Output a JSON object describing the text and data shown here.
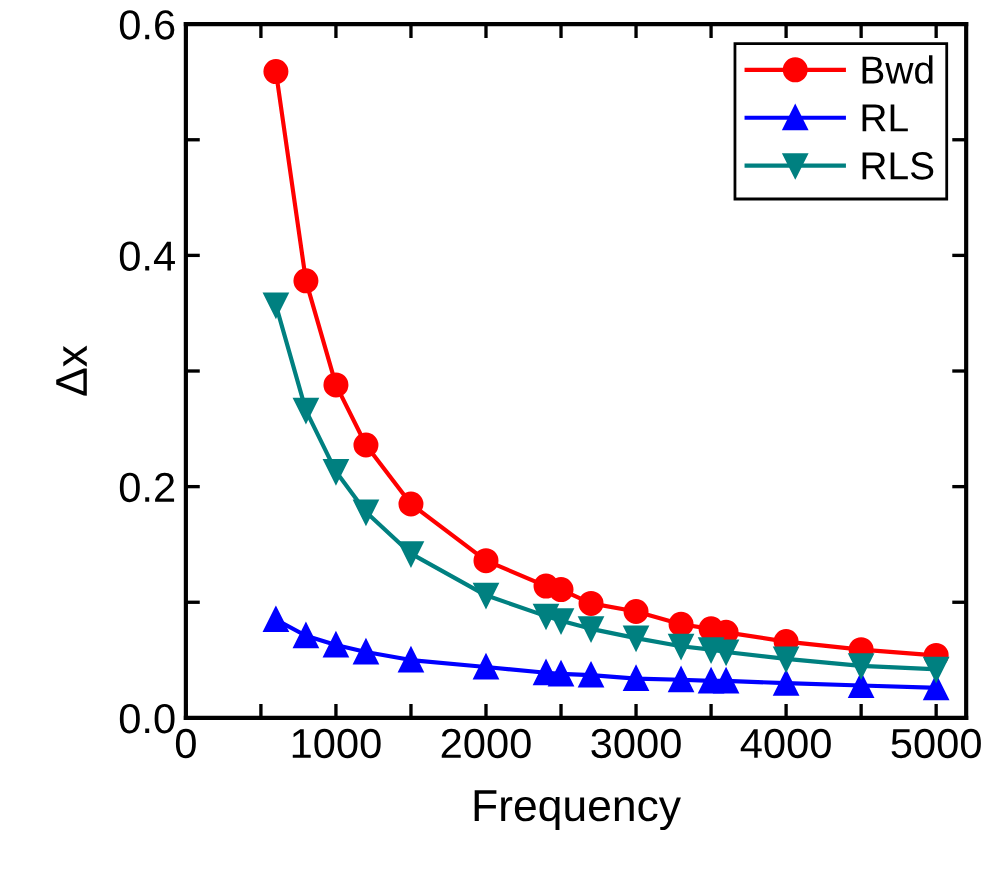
{
  "chart_data": {
    "type": "line",
    "xlabel": "Frequency",
    "ylabel": "Δx",
    "x": [
      600,
      800,
      1000,
      1200,
      1500,
      2000,
      2400,
      2500,
      2700,
      3000,
      3300,
      3500,
      3600,
      4000,
      4500,
      5000
    ],
    "series": [
      {
        "name": "Bwd",
        "color": "#ff0000",
        "marker": "circle",
        "values": [
          0.559,
          0.378,
          0.288,
          0.236,
          0.185,
          0.136,
          0.114,
          0.111,
          0.099,
          0.092,
          0.081,
          0.077,
          0.074,
          0.066,
          0.059,
          0.054
        ]
      },
      {
        "name": "RL",
        "color": "#0000ff",
        "marker": "triangle",
        "values": [
          0.085,
          0.071,
          0.063,
          0.057,
          0.05,
          0.044,
          0.039,
          0.038,
          0.037,
          0.034,
          0.033,
          0.032,
          0.032,
          0.03,
          0.028,
          0.026
        ]
      },
      {
        "name": "RLS",
        "color": "#008080",
        "marker": "triangle_down",
        "values": [
          0.357,
          0.266,
          0.213,
          0.178,
          0.142,
          0.106,
          0.088,
          0.084,
          0.077,
          0.069,
          0.062,
          0.059,
          0.057,
          0.051,
          0.045,
          0.042
        ]
      }
    ],
    "xlim": [
      0,
      5200
    ],
    "ylim": [
      0,
      0.6
    ],
    "xticks": [
      0,
      {
        "value": 500,
        "label": null
      },
      1000,
      {
        "value": 1500,
        "label": null
      },
      2000,
      {
        "value": 2500,
        "label": null
      },
      3000,
      {
        "value": 3500,
        "label": null
      },
      4000,
      {
        "value": 4500,
        "label": null
      },
      5000
    ],
    "yticks": [
      {
        "value": 0,
        "label": "0.0"
      },
      {
        "value": 0.1,
        "label": null
      },
      {
        "value": 0.2,
        "label": "0.2"
      },
      {
        "value": 0.3,
        "label": null
      },
      {
        "value": 0.4,
        "label": "0.4"
      },
      {
        "value": 0.5,
        "label": null
      },
      {
        "value": 0.6,
        "label": "0.6"
      }
    ],
    "grid": false,
    "legend": "top right",
    "line_style": "solid"
  }
}
